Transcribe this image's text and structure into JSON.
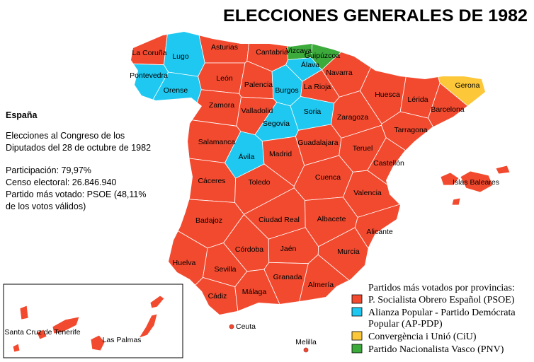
{
  "title": "ELECCIONES GENERALES DE 1982",
  "info": {
    "heading": "España",
    "lines": [
      "Elecciones al Congreso de los",
      "Diputados del 28 de octubre de 1982",
      "Participación: 79,97%",
      "Censo electoral: 26.846.940",
      "Partido más votado: PSOE (48,11%",
      "de los votos válidos)"
    ]
  },
  "provinces": [
    {
      "name": "La Coruña",
      "color": "#f24a2f"
    },
    {
      "name": "Lugo",
      "color": "#1ec8f0"
    },
    {
      "name": "Pontevedra",
      "color": "#1ec8f0"
    },
    {
      "name": "Orense",
      "color": "#1ec8f0"
    },
    {
      "name": "Asturias",
      "color": "#f24a2f"
    },
    {
      "name": "Cantabria",
      "color": "#f24a2f"
    },
    {
      "name": "Vizcaya",
      "color": "#3cab3c"
    },
    {
      "name": "Guipúzcoa",
      "color": "#3cab3c"
    },
    {
      "name": "Álava",
      "color": "#1ec8f0"
    },
    {
      "name": "Navarra",
      "color": "#f24a2f"
    },
    {
      "name": "León",
      "color": "#f24a2f"
    },
    {
      "name": "Palencia",
      "color": "#f24a2f"
    },
    {
      "name": "Burgos",
      "color": "#1ec8f0"
    },
    {
      "name": "La Rioja",
      "color": "#f24a2f"
    },
    {
      "name": "Zamora",
      "color": "#f24a2f"
    },
    {
      "name": "Valladolid",
      "color": "#f24a2f"
    },
    {
      "name": "Soria",
      "color": "#1ec8f0"
    },
    {
      "name": "Huesca",
      "color": "#f24a2f"
    },
    {
      "name": "Lérida",
      "color": "#f24a2f"
    },
    {
      "name": "Gerona",
      "color": "#fcc83a"
    },
    {
      "name": "Barcelona",
      "color": "#f24a2f"
    },
    {
      "name": "Zaragoza",
      "color": "#f24a2f"
    },
    {
      "name": "Tarragona",
      "color": "#f24a2f"
    },
    {
      "name": "Segovia",
      "color": "#1ec8f0"
    },
    {
      "name": "Salamanca",
      "color": "#f24a2f"
    },
    {
      "name": "Ávila",
      "color": "#1ec8f0"
    },
    {
      "name": "Madrid",
      "color": "#f24a2f"
    },
    {
      "name": "Guadalajara",
      "color": "#f24a2f"
    },
    {
      "name": "Teruel",
      "color": "#f24a2f"
    },
    {
      "name": "Castellón",
      "color": "#f24a2f"
    },
    {
      "name": "Cáceres",
      "color": "#f24a2f"
    },
    {
      "name": "Toledo",
      "color": "#f24a2f"
    },
    {
      "name": "Cuenca",
      "color": "#f24a2f"
    },
    {
      "name": "Valencia",
      "color": "#f24a2f"
    },
    {
      "name": "Badajoz",
      "color": "#f24a2f"
    },
    {
      "name": "Ciudad Real",
      "color": "#f24a2f"
    },
    {
      "name": "Albacete",
      "color": "#f24a2f"
    },
    {
      "name": "Alicante",
      "color": "#f24a2f"
    },
    {
      "name": "Huelva",
      "color": "#f24a2f"
    },
    {
      "name": "Sevilla",
      "color": "#f24a2f"
    },
    {
      "name": "Córdoba",
      "color": "#f24a2f"
    },
    {
      "name": "Jaén",
      "color": "#f24a2f"
    },
    {
      "name": "Granada",
      "color": "#f24a2f"
    },
    {
      "name": "Almería",
      "color": "#f24a2f"
    },
    {
      "name": "Murcia",
      "color": "#f24a2f"
    },
    {
      "name": "Cádiz",
      "color": "#f24a2f"
    },
    {
      "name": "Málaga",
      "color": "#f24a2f"
    },
    {
      "name": "Islas Baleares",
      "color": "#f24a2f"
    },
    {
      "name": "Santa Cruz de Tenerife",
      "color": "#f24a2f"
    },
    {
      "name": "Las Palmas",
      "color": "#f24a2f"
    },
    {
      "name": "Ceuta",
      "color": "#f24a2f"
    },
    {
      "name": "Melilla",
      "color": "#f24a2f"
    }
  ],
  "legend": {
    "title": "Partidos más votados por provincias:",
    "items": [
      {
        "lines": [
          "P. Socialista Obrero Español (PSOE)"
        ],
        "color": "#f24a2f"
      },
      {
        "lines": [
          "Alianza Popular - Partido Demócrata",
          "Popular (AP-PDP)"
        ],
        "color": "#1ec8f0"
      },
      {
        "lines": [
          "Convergència i Unió (CiU)"
        ],
        "color": "#fcc83a"
      },
      {
        "lines": [
          "Partido Nacionalista Vasco (PNV)"
        ],
        "color": "#3cab3c"
      }
    ]
  }
}
